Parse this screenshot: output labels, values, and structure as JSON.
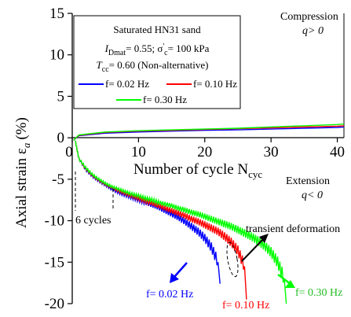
{
  "chart_data": {
    "type": "line",
    "xlabel": "Number of cycle N",
    "xlabel_sub": "cyc",
    "ylabel_main": "Axial strain ε",
    "ylabel_sub": "a",
    "ylabel_unit": "(%)",
    "xlim": [
      0,
      41
    ],
    "ylim": [
      -20,
      15
    ],
    "x_ticks": [
      0,
      10,
      20,
      30,
      40
    ],
    "y_ticks": [
      15,
      10,
      5,
      0,
      -5,
      -10,
      -15,
      -20
    ],
    "grid": false,
    "legend": {
      "placement": "top-left",
      "line1": "Saturated HN31 sand",
      "line2_a": "I",
      "line2_a_sub": "Dmat",
      "line2_b": "= 0.55; σ",
      "line2_b_sup": "'",
      "line2_b_sub": "c",
      "line2_c": "= 100 kPa",
      "line3_a": "T",
      "line3_a_sub": "cc",
      "line3_b": "= 0.60 (Non-alternative)"
    },
    "series": [
      {
        "name": "f= 0.02 Hz",
        "color": "#0000ff",
        "compression": [
          [
            0.2,
            -0.3
          ],
          [
            1,
            0.25
          ],
          [
            5,
            0.55
          ],
          [
            10,
            0.7
          ],
          [
            15,
            0.8
          ],
          [
            20,
            0.9
          ],
          [
            25,
            0.95
          ],
          [
            30,
            1.05
          ],
          [
            35,
            1.15
          ],
          [
            40,
            1.25
          ],
          [
            41,
            1.3
          ]
        ],
        "extension_end": [
          37.5,
          -17.5
        ],
        "extension": [
          [
            0.5,
            -0.5
          ],
          [
            1,
            -2.5
          ],
          [
            2,
            -3.8
          ],
          [
            3,
            -4.6
          ],
          [
            4,
            -5.2
          ],
          [
            5,
            -5.7
          ],
          [
            6,
            -6.2
          ],
          [
            7,
            -6.6
          ],
          [
            8,
            -6.9
          ],
          [
            9,
            -7.2
          ],
          [
            10,
            -7.5
          ],
          [
            11,
            -7.8
          ],
          [
            12,
            -8.1
          ],
          [
            13,
            -8.4
          ],
          [
            14,
            -8.8
          ],
          [
            15,
            -9.2
          ],
          [
            16,
            -9.6
          ],
          [
            17,
            -10.1
          ],
          [
            18,
            -10.7
          ],
          [
            19,
            -11.3
          ],
          [
            20,
            -12.1
          ],
          [
            21,
            -13.2
          ],
          [
            22,
            -15.0
          ]
        ]
      },
      {
        "name": "f= 0.10 Hz",
        "color": "#ff0000",
        "compression": [
          [
            0.2,
            -0.3
          ],
          [
            1,
            0.3
          ],
          [
            5,
            0.65
          ],
          [
            10,
            0.8
          ],
          [
            15,
            0.9
          ],
          [
            20,
            1.0
          ],
          [
            25,
            1.1
          ],
          [
            30,
            1.2
          ],
          [
            35,
            1.3
          ],
          [
            40,
            1.4
          ],
          [
            41,
            1.45
          ]
        ],
        "extension": [
          [
            0.5,
            -0.5
          ],
          [
            1,
            -2.5
          ],
          [
            2,
            -3.7
          ],
          [
            3,
            -4.5
          ],
          [
            4,
            -5.1
          ],
          [
            5,
            -5.6
          ],
          [
            6,
            -6.0
          ],
          [
            7,
            -6.4
          ],
          [
            8,
            -6.7
          ],
          [
            9,
            -7.0
          ],
          [
            10,
            -7.3
          ],
          [
            11,
            -7.6
          ],
          [
            12,
            -7.9
          ],
          [
            13,
            -8.2
          ],
          [
            14,
            -8.5
          ],
          [
            15,
            -8.8
          ],
          [
            16,
            -9.1
          ],
          [
            17,
            -9.4
          ],
          [
            18,
            -9.8
          ],
          [
            19,
            -10.1
          ],
          [
            20,
            -10.5
          ],
          [
            21,
            -10.9
          ],
          [
            22,
            -11.3
          ],
          [
            23,
            -11.9
          ],
          [
            24,
            -12.6
          ],
          [
            25,
            -13.6
          ],
          [
            26,
            -15.5
          ]
        ]
      },
      {
        "name": "f= 0.30 Hz",
        "color": "#00ff00",
        "compression": [
          [
            0.2,
            -0.3
          ],
          [
            1,
            0.35
          ],
          [
            5,
            0.7
          ],
          [
            10,
            0.85
          ],
          [
            15,
            0.95
          ],
          [
            20,
            1.05
          ],
          [
            25,
            1.15
          ],
          [
            30,
            1.3
          ],
          [
            35,
            1.45
          ],
          [
            40,
            1.6
          ],
          [
            41,
            1.65
          ]
        ],
        "extension": [
          [
            0.5,
            -0.5
          ],
          [
            1,
            -2.5
          ],
          [
            2,
            -3.6
          ],
          [
            3,
            -4.4
          ],
          [
            4,
            -5.0
          ],
          [
            5,
            -5.5
          ],
          [
            6,
            -5.9
          ],
          [
            7,
            -6.2
          ],
          [
            8,
            -6.5
          ],
          [
            9,
            -6.8
          ],
          [
            10,
            -7.0
          ],
          [
            11,
            -7.3
          ],
          [
            12,
            -7.5
          ],
          [
            13,
            -7.8
          ],
          [
            14,
            -8.0
          ],
          [
            15,
            -8.2
          ],
          [
            16,
            -8.5
          ],
          [
            17,
            -8.7
          ],
          [
            18,
            -9.0
          ],
          [
            19,
            -9.2
          ],
          [
            20,
            -9.5
          ],
          [
            21,
            -9.8
          ],
          [
            22,
            -10.1
          ],
          [
            23,
            -10.4
          ],
          [
            24,
            -10.7
          ],
          [
            25,
            -11.1
          ],
          [
            26,
            -11.5
          ],
          [
            27,
            -11.9
          ],
          [
            28,
            -12.4
          ],
          [
            29,
            -13.0
          ],
          [
            30,
            -13.8
          ],
          [
            31,
            -15.0
          ],
          [
            32,
            -17.0
          ]
        ]
      }
    ],
    "annotations": {
      "compression_title": "Compression",
      "compression_cond": "q> 0",
      "extension_title": "Extension",
      "extension_cond": "q< 0",
      "six_cycles": "6 cycles",
      "transient": "transient deformation",
      "label_002": "f= 0.02 Hz",
      "label_010": "f= 0.10 Hz",
      "label_030": "f= 0.30 Hz"
    }
  }
}
